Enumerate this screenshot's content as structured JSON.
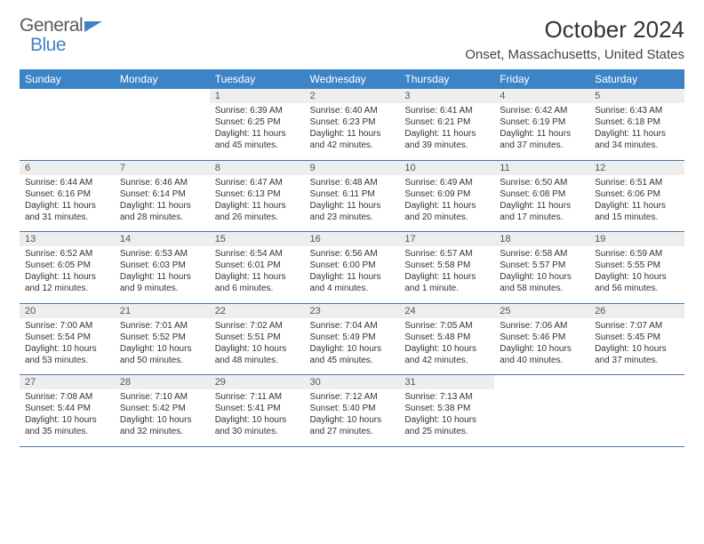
{
  "logo": {
    "line1": "General",
    "line2": "Blue"
  },
  "title": "October 2024",
  "location": "Onset, Massachusetts, United States",
  "colors": {
    "header_bg": "#3d84c6",
    "header_text": "#ffffff",
    "daynum_bg": "#eeeeee",
    "border": "#4d78a4",
    "text": "#333333"
  },
  "day_names": [
    "Sunday",
    "Monday",
    "Tuesday",
    "Wednesday",
    "Thursday",
    "Friday",
    "Saturday"
  ],
  "weeks": [
    [
      null,
      null,
      {
        "num": "1",
        "sunrise": "Sunrise: 6:39 AM",
        "sunset": "Sunset: 6:25 PM",
        "daylight": "Daylight: 11 hours and 45 minutes."
      },
      {
        "num": "2",
        "sunrise": "Sunrise: 6:40 AM",
        "sunset": "Sunset: 6:23 PM",
        "daylight": "Daylight: 11 hours and 42 minutes."
      },
      {
        "num": "3",
        "sunrise": "Sunrise: 6:41 AM",
        "sunset": "Sunset: 6:21 PM",
        "daylight": "Daylight: 11 hours and 39 minutes."
      },
      {
        "num": "4",
        "sunrise": "Sunrise: 6:42 AM",
        "sunset": "Sunset: 6:19 PM",
        "daylight": "Daylight: 11 hours and 37 minutes."
      },
      {
        "num": "5",
        "sunrise": "Sunrise: 6:43 AM",
        "sunset": "Sunset: 6:18 PM",
        "daylight": "Daylight: 11 hours and 34 minutes."
      }
    ],
    [
      {
        "num": "6",
        "sunrise": "Sunrise: 6:44 AM",
        "sunset": "Sunset: 6:16 PM",
        "daylight": "Daylight: 11 hours and 31 minutes."
      },
      {
        "num": "7",
        "sunrise": "Sunrise: 6:46 AM",
        "sunset": "Sunset: 6:14 PM",
        "daylight": "Daylight: 11 hours and 28 minutes."
      },
      {
        "num": "8",
        "sunrise": "Sunrise: 6:47 AM",
        "sunset": "Sunset: 6:13 PM",
        "daylight": "Daylight: 11 hours and 26 minutes."
      },
      {
        "num": "9",
        "sunrise": "Sunrise: 6:48 AM",
        "sunset": "Sunset: 6:11 PM",
        "daylight": "Daylight: 11 hours and 23 minutes."
      },
      {
        "num": "10",
        "sunrise": "Sunrise: 6:49 AM",
        "sunset": "Sunset: 6:09 PM",
        "daylight": "Daylight: 11 hours and 20 minutes."
      },
      {
        "num": "11",
        "sunrise": "Sunrise: 6:50 AM",
        "sunset": "Sunset: 6:08 PM",
        "daylight": "Daylight: 11 hours and 17 minutes."
      },
      {
        "num": "12",
        "sunrise": "Sunrise: 6:51 AM",
        "sunset": "Sunset: 6:06 PM",
        "daylight": "Daylight: 11 hours and 15 minutes."
      }
    ],
    [
      {
        "num": "13",
        "sunrise": "Sunrise: 6:52 AM",
        "sunset": "Sunset: 6:05 PM",
        "daylight": "Daylight: 11 hours and 12 minutes."
      },
      {
        "num": "14",
        "sunrise": "Sunrise: 6:53 AM",
        "sunset": "Sunset: 6:03 PM",
        "daylight": "Daylight: 11 hours and 9 minutes."
      },
      {
        "num": "15",
        "sunrise": "Sunrise: 6:54 AM",
        "sunset": "Sunset: 6:01 PM",
        "daylight": "Daylight: 11 hours and 6 minutes."
      },
      {
        "num": "16",
        "sunrise": "Sunrise: 6:56 AM",
        "sunset": "Sunset: 6:00 PM",
        "daylight": "Daylight: 11 hours and 4 minutes."
      },
      {
        "num": "17",
        "sunrise": "Sunrise: 6:57 AM",
        "sunset": "Sunset: 5:58 PM",
        "daylight": "Daylight: 11 hours and 1 minute."
      },
      {
        "num": "18",
        "sunrise": "Sunrise: 6:58 AM",
        "sunset": "Sunset: 5:57 PM",
        "daylight": "Daylight: 10 hours and 58 minutes."
      },
      {
        "num": "19",
        "sunrise": "Sunrise: 6:59 AM",
        "sunset": "Sunset: 5:55 PM",
        "daylight": "Daylight: 10 hours and 56 minutes."
      }
    ],
    [
      {
        "num": "20",
        "sunrise": "Sunrise: 7:00 AM",
        "sunset": "Sunset: 5:54 PM",
        "daylight": "Daylight: 10 hours and 53 minutes."
      },
      {
        "num": "21",
        "sunrise": "Sunrise: 7:01 AM",
        "sunset": "Sunset: 5:52 PM",
        "daylight": "Daylight: 10 hours and 50 minutes."
      },
      {
        "num": "22",
        "sunrise": "Sunrise: 7:02 AM",
        "sunset": "Sunset: 5:51 PM",
        "daylight": "Daylight: 10 hours and 48 minutes."
      },
      {
        "num": "23",
        "sunrise": "Sunrise: 7:04 AM",
        "sunset": "Sunset: 5:49 PM",
        "daylight": "Daylight: 10 hours and 45 minutes."
      },
      {
        "num": "24",
        "sunrise": "Sunrise: 7:05 AM",
        "sunset": "Sunset: 5:48 PM",
        "daylight": "Daylight: 10 hours and 42 minutes."
      },
      {
        "num": "25",
        "sunrise": "Sunrise: 7:06 AM",
        "sunset": "Sunset: 5:46 PM",
        "daylight": "Daylight: 10 hours and 40 minutes."
      },
      {
        "num": "26",
        "sunrise": "Sunrise: 7:07 AM",
        "sunset": "Sunset: 5:45 PM",
        "daylight": "Daylight: 10 hours and 37 minutes."
      }
    ],
    [
      {
        "num": "27",
        "sunrise": "Sunrise: 7:08 AM",
        "sunset": "Sunset: 5:44 PM",
        "daylight": "Daylight: 10 hours and 35 minutes."
      },
      {
        "num": "28",
        "sunrise": "Sunrise: 7:10 AM",
        "sunset": "Sunset: 5:42 PM",
        "daylight": "Daylight: 10 hours and 32 minutes."
      },
      {
        "num": "29",
        "sunrise": "Sunrise: 7:11 AM",
        "sunset": "Sunset: 5:41 PM",
        "daylight": "Daylight: 10 hours and 30 minutes."
      },
      {
        "num": "30",
        "sunrise": "Sunrise: 7:12 AM",
        "sunset": "Sunset: 5:40 PM",
        "daylight": "Daylight: 10 hours and 27 minutes."
      },
      {
        "num": "31",
        "sunrise": "Sunrise: 7:13 AM",
        "sunset": "Sunset: 5:38 PM",
        "daylight": "Daylight: 10 hours and 25 minutes."
      },
      null,
      null
    ]
  ]
}
